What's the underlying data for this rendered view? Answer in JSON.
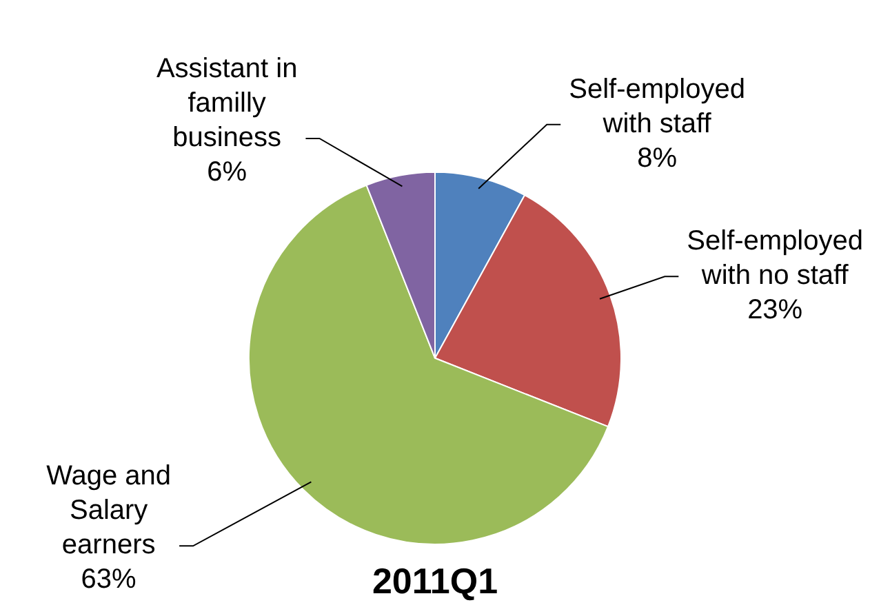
{
  "chart_data": {
    "type": "pie",
    "title": "2011Q1",
    "categories": [
      "Self-employed with staff",
      "Self-employed with no staff",
      "Wage and Salary earners",
      "Assistant in familly business"
    ],
    "values": [
      8,
      23,
      63,
      6
    ],
    "colors": [
      "#4f81bd",
      "#c0504d",
      "#9bbb59",
      "#8064a2"
    ],
    "value_labels": [
      "8%",
      "23%",
      "63%",
      "6%"
    ],
    "legend": false
  }
}
